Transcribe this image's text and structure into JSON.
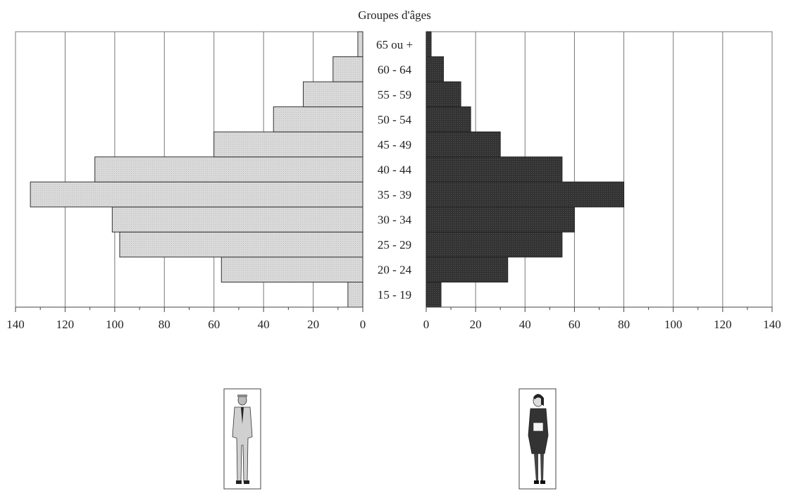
{
  "chart_data": {
    "type": "bar",
    "title": "Groupes d'âges",
    "categories": [
      "15 - 19",
      "20 - 24",
      "25 - 29",
      "30 - 34",
      "35 - 39",
      "40 - 44",
      "45 - 49",
      "50 - 54",
      "55 - 59",
      "60 - 64",
      "65 ou +"
    ],
    "series": [
      {
        "values": [
          6,
          57,
          98,
          101,
          134,
          108,
          60,
          36,
          24,
          12,
          2
        ],
        "color": "#d9d9d9"
      },
      {
        "values": [
          6,
          33,
          55,
          60,
          80,
          55,
          30,
          18,
          14,
          7,
          2
        ],
        "color": "#333333"
      }
    ],
    "xlim": [
      0,
      140
    ],
    "ticks": [
      "0",
      "20",
      "40",
      "60",
      "80",
      "100",
      "120",
      "140"
    ],
    "grid": true,
    "icons": [
      "man-figure-icon",
      "woman-figure-icon"
    ]
  }
}
